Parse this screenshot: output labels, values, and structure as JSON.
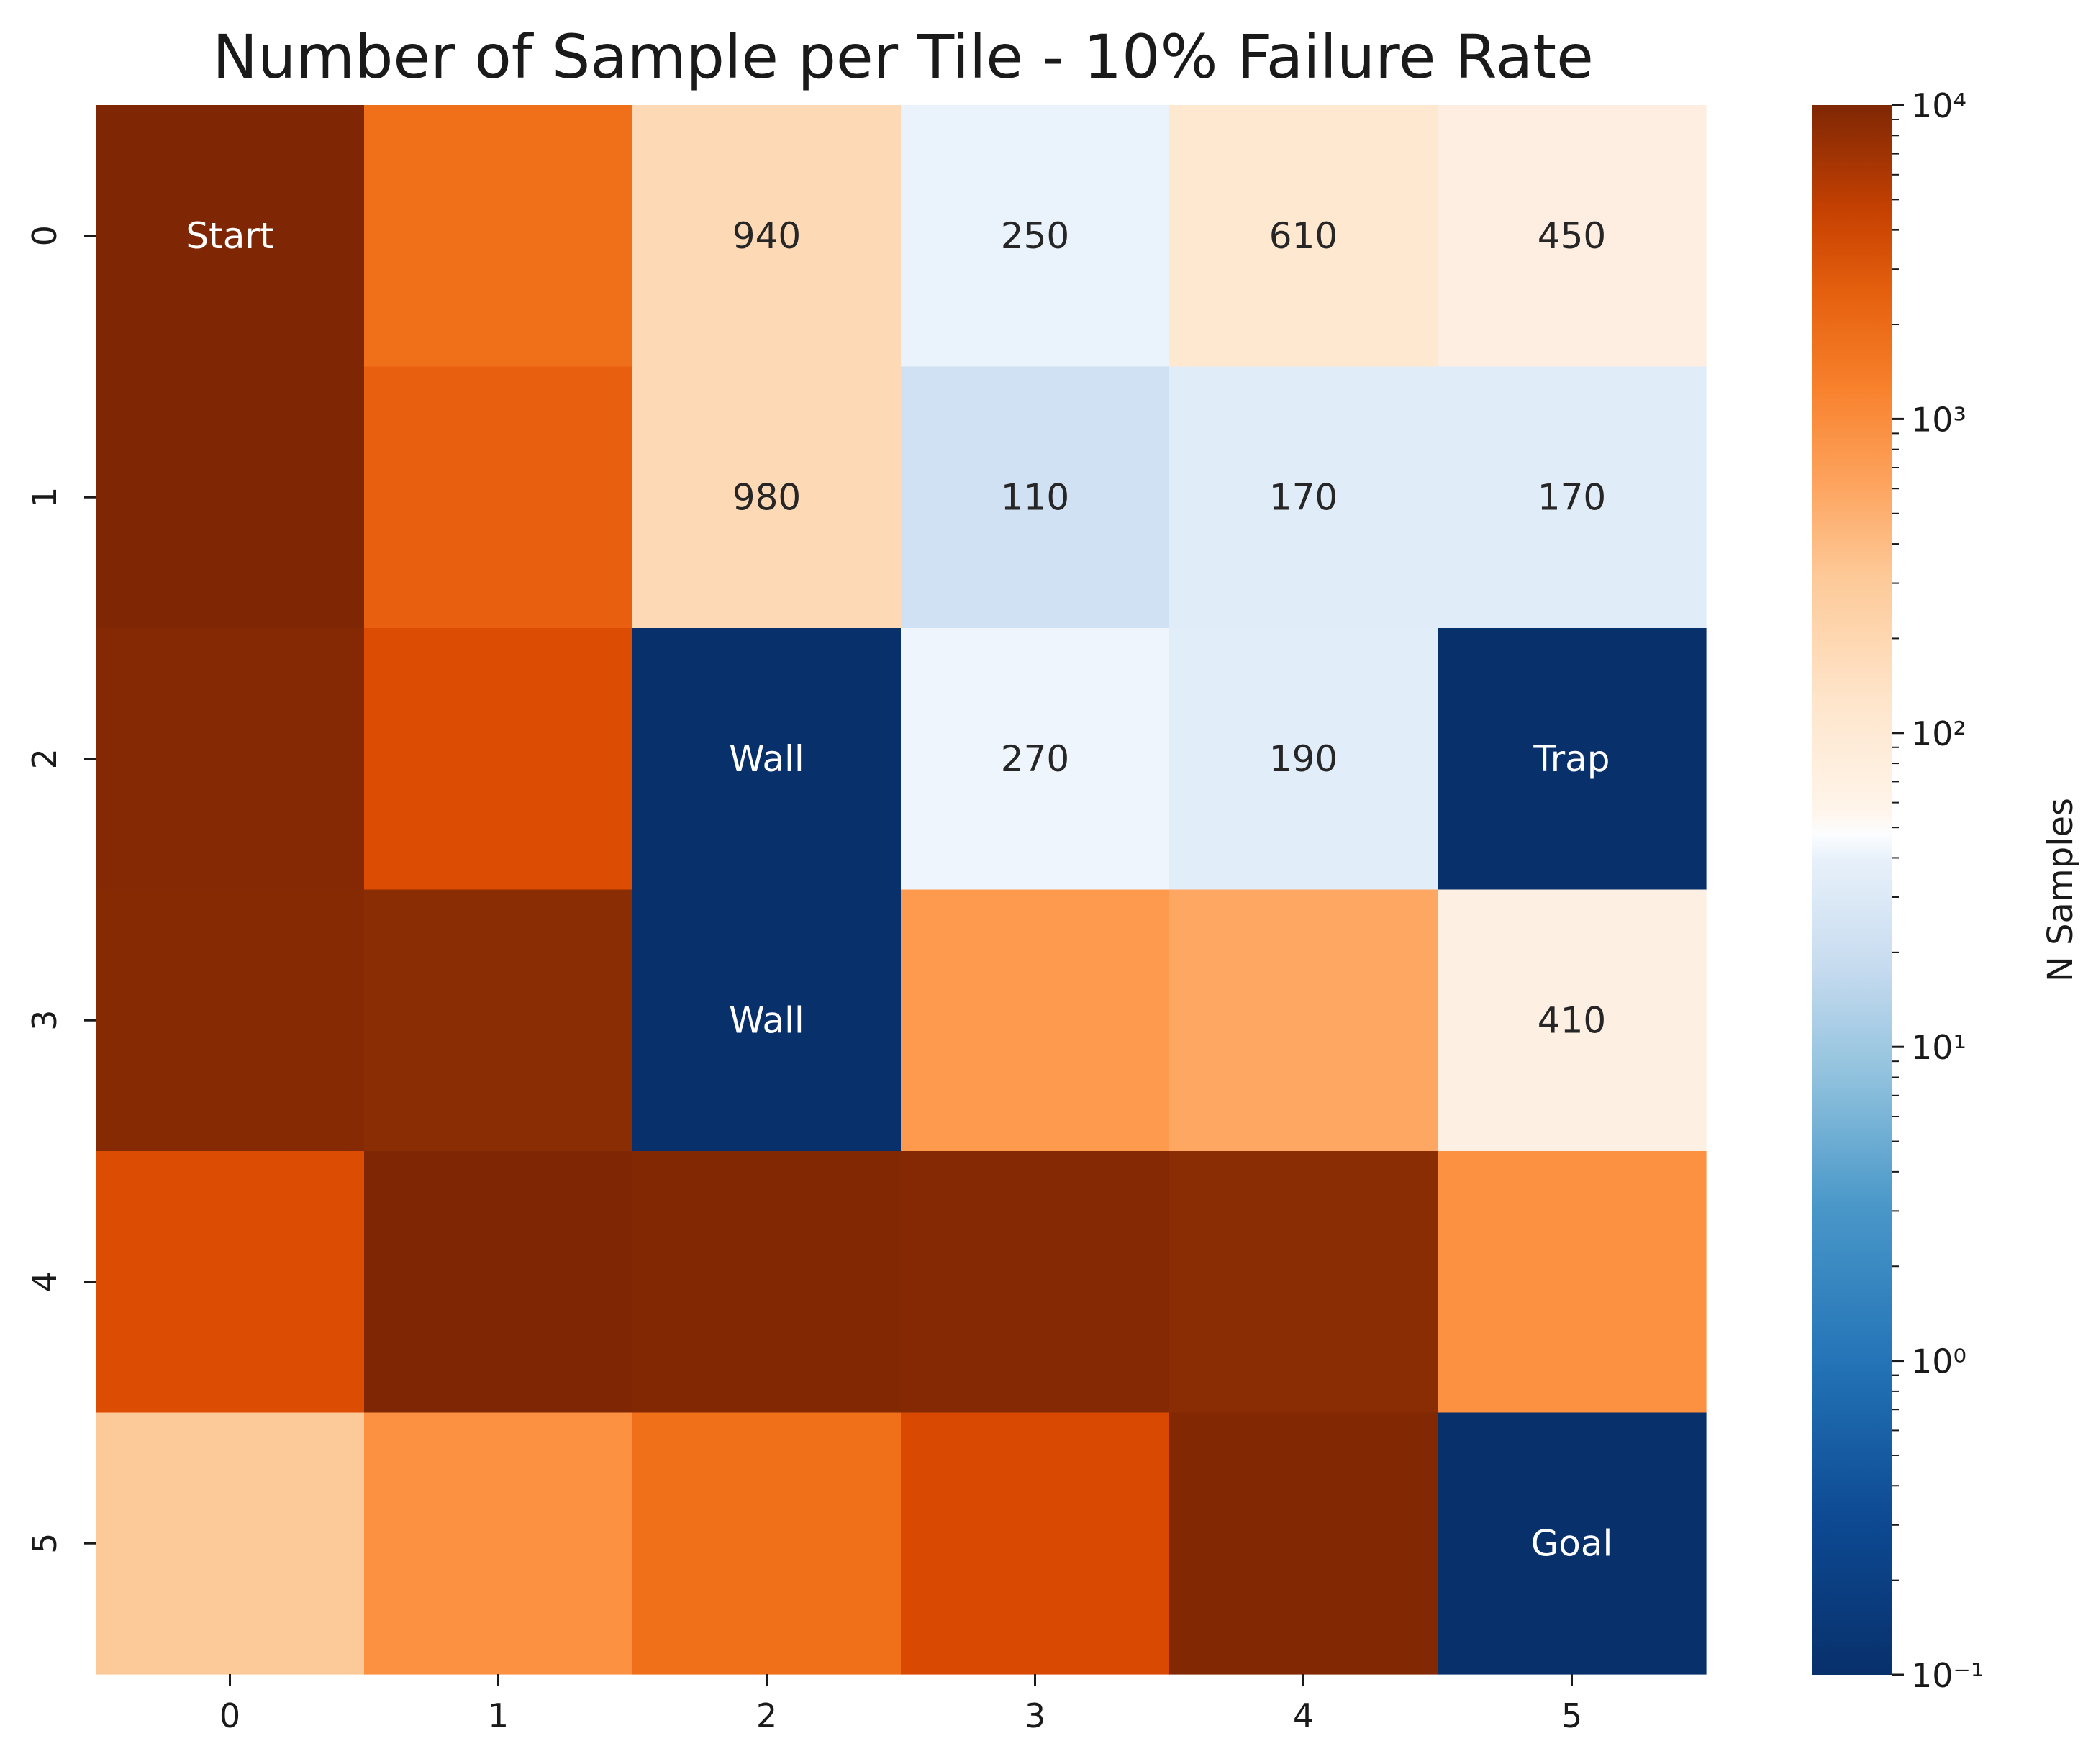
{
  "chart_data": {
    "type": "heatmap",
    "title": "Number of Sample per Tile - 10% Failure Rate",
    "x_ticks": [
      "0",
      "1",
      "2",
      "3",
      "4",
      "5"
    ],
    "y_ticks": [
      "0",
      "1",
      "2",
      "3",
      "4",
      "5"
    ],
    "scale": "log",
    "vmin": 0.1,
    "vmax": 10000,
    "colorbar": {
      "label": "N Samples",
      "ticks": [
        {
          "value": 10000,
          "label": "10⁴"
        },
        {
          "value": 1000,
          "label": "10³"
        },
        {
          "value": 100,
          "label": "10²"
        },
        {
          "value": 10,
          "label": "10¹"
        },
        {
          "value": 1,
          "label": "10⁰"
        },
        {
          "value": 0.1,
          "label": "10⁻¹"
        }
      ]
    },
    "cells": [
      [
        {
          "value": 10000,
          "label": "Start",
          "color": "#7f2704"
        },
        {
          "value": 1500,
          "label": "",
          "color": "#f0701a"
        },
        {
          "value": 940,
          "label": "940",
          "color": "#fdd9b5"
        },
        {
          "value": 250,
          "label": "250",
          "color": "#eaf2fb"
        },
        {
          "value": 610,
          "label": "610",
          "color": "#fee8d0"
        },
        {
          "value": 450,
          "label": "450",
          "color": "#feeee1"
        }
      ],
      [
        {
          "value": 9500,
          "label": "",
          "color": "#7f2704"
        },
        {
          "value": 1800,
          "label": "",
          "color": "#e8600f"
        },
        {
          "value": 980,
          "label": "980",
          "color": "#fdd9b5"
        },
        {
          "value": 110,
          "label": "110",
          "color": "#cfe1f2"
        },
        {
          "value": 170,
          "label": "170",
          "color": "#e0ecf8"
        },
        {
          "value": 170,
          "label": "170",
          "color": "#e0ecf8"
        }
      ],
      [
        {
          "value": 9000,
          "label": "",
          "color": "#842904"
        },
        {
          "value": 2500,
          "label": "",
          "color": "#dc4c03"
        },
        {
          "value": 0.1,
          "label": "Wall",
          "color": "#08306b"
        },
        {
          "value": 270,
          "label": "270",
          "color": "#eff5fc"
        },
        {
          "value": 190,
          "label": "190",
          "color": "#e1edf8"
        },
        {
          "value": 0.1,
          "label": "Trap",
          "color": "#08306b"
        }
      ],
      [
        {
          "value": 8500,
          "label": "",
          "color": "#862a04"
        },
        {
          "value": 8000,
          "label": "",
          "color": "#8a2c04"
        },
        {
          "value": 0.1,
          "label": "Wall",
          "color": "#08306b"
        },
        {
          "value": 600,
          "label": "",
          "color": "#fd9a4e"
        },
        {
          "value": 500,
          "label": "",
          "color": "#fda762"
        },
        {
          "value": 410,
          "label": "410",
          "color": "#feefe3"
        }
      ],
      [
        {
          "value": 2500,
          "label": "",
          "color": "#dc4c03"
        },
        {
          "value": 10000,
          "label": "",
          "color": "#7f2704"
        },
        {
          "value": 9500,
          "label": "",
          "color": "#822904"
        },
        {
          "value": 9000,
          "label": "",
          "color": "#842904"
        },
        {
          "value": 8000,
          "label": "",
          "color": "#8a2c04"
        },
        {
          "value": 700,
          "label": "",
          "color": "#fd9142"
        }
      ],
      [
        {
          "value": 200,
          "label": "",
          "color": "#fcc999"
        },
        {
          "value": 700,
          "label": "",
          "color": "#fd9142"
        },
        {
          "value": 1500,
          "label": "",
          "color": "#f0701a"
        },
        {
          "value": 2500,
          "label": "",
          "color": "#da4902"
        },
        {
          "value": 9500,
          "label": "",
          "color": "#822904"
        },
        {
          "value": 0.1,
          "label": "Goal",
          "color": "#08306b"
        }
      ]
    ],
    "light_text_color": "#ffffff",
    "dark_text_color": "#262626"
  }
}
